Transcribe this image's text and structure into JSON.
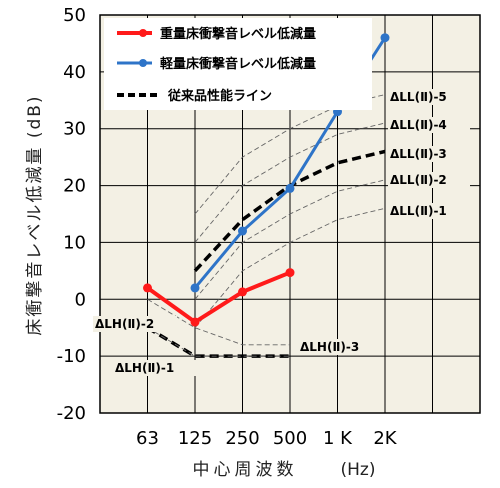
{
  "chart_data": {
    "type": "line",
    "categories": [
      "63",
      "125",
      "250",
      "500",
      "1 K",
      "2K"
    ],
    "ylabel": "床衝撃音レベル低減量 (dB)",
    "xlabel": "中心周波数",
    "xunit": "(Hz)",
    "ylim": [
      -20,
      50
    ],
    "yticks": [
      -20,
      -10,
      0,
      10,
      20,
      30,
      40,
      50
    ],
    "grid": true,
    "legend_position": "top-left",
    "series": [
      {
        "name": "重量床衝撃音レベル低減量",
        "color": "#ff1a1a",
        "x": [
          "63",
          "125",
          "250",
          "500"
        ],
        "values": [
          2,
          -4,
          1.3,
          4.7
        ]
      },
      {
        "name": "軽量床衝撃音レベル低減量",
        "color": "#2e74c8",
        "x": [
          "125",
          "250",
          "500",
          "1 K",
          "2K"
        ],
        "values": [
          2,
          12,
          19.5,
          33,
          46
        ]
      },
      {
        "name": "従来品性能ライン",
        "color": "#000000",
        "dashed": true
      }
    ],
    "reference_lines": {
      "ll": [
        {
          "label": "ΔLL(Ⅱ)-5",
          "values": [
            15,
            25,
            30,
            34,
            36
          ]
        },
        {
          "label": "ΔLL(Ⅱ)-4",
          "values": [
            10,
            20,
            25,
            29,
            31
          ]
        },
        {
          "label": "ΔLL(Ⅱ)-3",
          "values": [
            5,
            14,
            20,
            24,
            26
          ],
          "bold": true
        },
        {
          "label": "ΔLL(Ⅱ)-2",
          "values": [
            0,
            10,
            15,
            19,
            21
          ]
        },
        {
          "label": "ΔLL(Ⅱ)-1",
          "values": [
            -5,
            5,
            10,
            14,
            16
          ]
        }
      ],
      "lh": [
        {
          "label": "ΔLH(Ⅱ)-2",
          "values": [
            -5,
            -10,
            -10,
            -10
          ],
          "bold": true
        },
        {
          "label": "ΔLH(Ⅱ)-1",
          "values": [
            -5,
            -10,
            -10,
            -10
          ]
        },
        {
          "label": "ΔLH(Ⅱ)-3",
          "values": [
            0,
            -5,
            -8,
            -8
          ]
        }
      ]
    }
  }
}
